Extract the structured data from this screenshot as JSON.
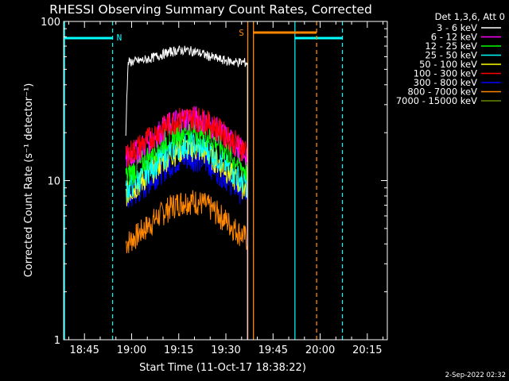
{
  "chart_data": {
    "type": "line",
    "title": "RHESSI Observing Summary Count Rates, Corrected",
    "xlabel": "Start Time (11-Oct-17 18:38:22)",
    "ylabel": "Corrected Count Rate (s⁻¹ detector⁻¹)",
    "y_scale": "log",
    "ylim": [
      1,
      100
    ],
    "xlim_minutes": [
      0,
      103
    ],
    "x_ticks": [
      "18:45",
      "19:00",
      "19:15",
      "19:30",
      "19:45",
      "20:00",
      "20:15"
    ],
    "y_ticks": [
      "1",
      "10",
      "100"
    ],
    "legend_title": "Det 1,3,6, Att 0",
    "legend_placement": "top-right",
    "series": [
      {
        "name": "3 - 6 keV",
        "color": "#ffffff",
        "level": 55,
        "start": 19.8,
        "end": 58.5,
        "type": "flat"
      },
      {
        "name": "6 - 12 keV",
        "color": "#ff00ff",
        "peak": 25,
        "base": 12,
        "start": 19.8,
        "end": 58.5,
        "type": "hump"
      },
      {
        "name": "12 - 25 keV",
        "color": "#00ff00",
        "peak": 21,
        "base": 9,
        "start": 19.8,
        "end": 58.5,
        "type": "hump"
      },
      {
        "name": "25 - 50 keV",
        "color": "#00ffff",
        "peak": 17,
        "base": 7.5,
        "start": 19.8,
        "end": 58.5,
        "type": "hump"
      },
      {
        "name": "50 - 100 keV",
        "color": "#ffff00",
        "peak": 16,
        "base": 7,
        "start": 19.8,
        "end": 58.5,
        "type": "hump"
      },
      {
        "name": "100 - 300 keV",
        "color": "#ff0000",
        "peak": 25,
        "base": 13,
        "start": 19.8,
        "end": 58.5,
        "type": "hump"
      },
      {
        "name": "300 - 800 keV",
        "color": "#0000ff",
        "peak": 14,
        "base": 6.5,
        "start": 19.8,
        "end": 58.5,
        "type": "hump"
      },
      {
        "name": "800 - 7000 keV",
        "color": "#ff8800",
        "peak": 7.5,
        "base": 3.5,
        "start": 19.8,
        "end": 58.5,
        "type": "hump"
      },
      {
        "name": "7000 - 15000 keV",
        "color": "#668800",
        "peak": 0,
        "base": 0,
        "start": 0,
        "end": 0,
        "type": "none"
      }
    ],
    "markers": {
      "night_label": "N",
      "saa_label": "S",
      "night_color": "#00ffff",
      "saa_color": "#ff8800"
    }
  },
  "footer": {
    "timestamp": "2-Sep-2022 02:32"
  }
}
